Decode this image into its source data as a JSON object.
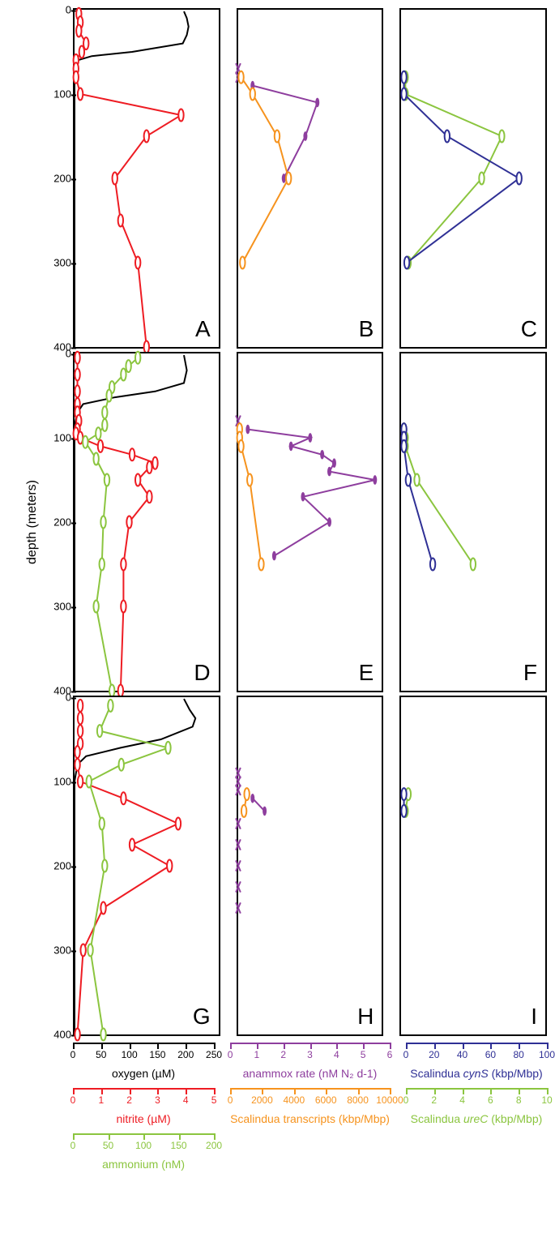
{
  "ylabel": "depth (meters)",
  "ylim": [
    0,
    400
  ],
  "yticks": [
    0,
    100,
    200,
    300,
    400
  ],
  "ytick_300_neg_panel": "C",
  "colors": {
    "black": "#000000",
    "red": "#ee1c23",
    "green": "#8bc53f",
    "orange": "#f6931e",
    "purple": "#8e3e9e",
    "blue": "#2f3095"
  },
  "panels": {
    "A": {
      "label": "A",
      "col": 1,
      "row": 1
    },
    "B": {
      "label": "B",
      "col": 2,
      "row": 1
    },
    "C": {
      "label": "C",
      "col": 3,
      "row": 1
    },
    "D": {
      "label": "D",
      "col": 1,
      "row": 2
    },
    "E": {
      "label": "E",
      "col": 2,
      "row": 2
    },
    "F": {
      "label": "F",
      "col": 3,
      "row": 2
    },
    "G": {
      "label": "G",
      "col": 1,
      "row": 3
    },
    "H": {
      "label": "H",
      "col": 2,
      "row": 3
    },
    "I": {
      "label": "I",
      "col": 3,
      "row": 3
    }
  },
  "line_width": 2,
  "marker_r": 5,
  "marker_x_size": 5,
  "series": {
    "A": [
      {
        "color": "black",
        "marker": "none",
        "xmax": 250,
        "pts": [
          [
            190,
            2
          ],
          [
            195,
            10
          ],
          [
            198,
            20
          ],
          [
            195,
            30
          ],
          [
            188,
            40
          ],
          [
            100,
            50
          ],
          [
            30,
            55
          ],
          [
            5,
            60
          ],
          [
            0,
            70
          ],
          [
            0,
            80
          ],
          [
            0,
            100
          ],
          [
            0,
            150
          ],
          [
            0,
            200
          ],
          [
            0,
            300
          ],
          [
            0,
            400
          ]
        ]
      },
      {
        "color": "red",
        "marker": "o",
        "open": true,
        "xmax": 5,
        "pts": [
          [
            0.15,
            5
          ],
          [
            0.2,
            15
          ],
          [
            0.15,
            25
          ],
          [
            0.4,
            40
          ],
          [
            0.25,
            50
          ],
          [
            0.05,
            60
          ],
          [
            0.05,
            70
          ],
          [
            0.05,
            80
          ],
          [
            0.2,
            100
          ],
          [
            3.7,
            125
          ],
          [
            2.5,
            150
          ],
          [
            1.4,
            200
          ],
          [
            1.6,
            250
          ],
          [
            2.2,
            300
          ],
          [
            2.5,
            400
          ]
        ]
      }
    ],
    "B": [
      {
        "color": "purple",
        "marker": "x",
        "xmax": 6,
        "no_line": true,
        "pts": [
          [
            0,
            70
          ],
          [
            0,
            80
          ]
        ]
      },
      {
        "color": "purple",
        "marker": "dot",
        "xmax": 6,
        "pts": [
          [
            0.6,
            90
          ],
          [
            3.3,
            110
          ],
          [
            2.8,
            150
          ],
          [
            1.9,
            200
          ]
        ]
      },
      {
        "color": "orange",
        "marker": "o",
        "open": true,
        "xmax": 10000,
        "pts": [
          [
            200,
            80
          ],
          [
            1000,
            100
          ],
          [
            2700,
            150
          ],
          [
            3500,
            200
          ],
          [
            300,
            300
          ]
        ]
      }
    ],
    "C": [
      {
        "color": "green",
        "marker": "o",
        "open": true,
        "xmax": 10,
        "pts": [
          [
            0.3,
            80
          ],
          [
            0.3,
            100
          ],
          [
            7.0,
            150
          ],
          [
            5.6,
            200
          ],
          [
            0.5,
            300
          ]
        ]
      },
      {
        "color": "blue",
        "marker": "o",
        "open": true,
        "xmax": 100,
        "pts": [
          [
            2,
            80
          ],
          [
            2,
            100
          ],
          [
            32,
            150
          ],
          [
            82,
            200
          ],
          [
            4,
            300
          ]
        ]
      }
    ],
    "D": [
      {
        "color": "black",
        "marker": "none",
        "xmax": 250,
        "pts": [
          [
            190,
            2
          ],
          [
            195,
            20
          ],
          [
            190,
            35
          ],
          [
            140,
            45
          ],
          [
            70,
            52
          ],
          [
            15,
            60
          ],
          [
            5,
            70
          ],
          [
            0,
            85
          ],
          [
            0,
            100
          ],
          [
            0,
            150
          ],
          [
            0,
            400
          ]
        ]
      },
      {
        "color": "red",
        "marker": "o",
        "open": true,
        "xmax": 5,
        "pts": [
          [
            0.1,
            5
          ],
          [
            0.1,
            25
          ],
          [
            0.1,
            45
          ],
          [
            0.1,
            60
          ],
          [
            0.1,
            70
          ],
          [
            0.15,
            80
          ],
          [
            0.1,
            90
          ],
          [
            0.05,
            95
          ],
          [
            0.2,
            100
          ],
          [
            0.9,
            110
          ],
          [
            2.0,
            120
          ],
          [
            2.8,
            130
          ],
          [
            2.6,
            135
          ],
          [
            2.2,
            150
          ],
          [
            2.6,
            170
          ],
          [
            1.9,
            200
          ],
          [
            1.7,
            250
          ],
          [
            1.7,
            300
          ],
          [
            1.6,
            400
          ]
        ]
      },
      {
        "color": "green",
        "marker": "o",
        "open": true,
        "xmax": 200,
        "pts": [
          [
            88,
            5
          ],
          [
            75,
            15
          ],
          [
            68,
            25
          ],
          [
            52,
            40
          ],
          [
            48,
            50
          ],
          [
            42,
            70
          ],
          [
            42,
            85
          ],
          [
            33,
            95
          ],
          [
            15,
            105
          ],
          [
            30,
            125
          ],
          [
            45,
            150
          ],
          [
            40,
            200
          ],
          [
            38,
            250
          ],
          [
            30,
            300
          ],
          [
            52,
            400
          ]
        ]
      }
    ],
    "E": [
      {
        "color": "purple",
        "marker": "x",
        "xmax": 6,
        "no_line": true,
        "pts": [
          [
            0,
            80
          ]
        ]
      },
      {
        "color": "purple",
        "marker": "dot",
        "xmax": 6,
        "pts": [
          [
            0.4,
            90
          ],
          [
            3.0,
            100
          ],
          [
            2.2,
            110
          ],
          [
            3.5,
            120
          ],
          [
            4.0,
            130
          ],
          [
            3.8,
            140
          ],
          [
            5.7,
            150
          ],
          [
            2.7,
            170
          ],
          [
            3.8,
            200
          ],
          [
            1.5,
            240
          ]
        ]
      },
      {
        "color": "orange",
        "marker": "o",
        "open": true,
        "xmax": 10000,
        "pts": [
          [
            100,
            90
          ],
          [
            100,
            100
          ],
          [
            200,
            110
          ],
          [
            800,
            150
          ],
          [
            1600,
            250
          ]
        ]
      }
    ],
    "F": [
      {
        "color": "green",
        "marker": "o",
        "open": true,
        "xmax": 10,
        "pts": [
          [
            0.2,
            90
          ],
          [
            0.3,
            100
          ],
          [
            0.3,
            110
          ],
          [
            1.1,
            150
          ],
          [
            5.0,
            250
          ]
        ]
      },
      {
        "color": "blue",
        "marker": "o",
        "open": true,
        "xmax": 100,
        "pts": [
          [
            2,
            90
          ],
          [
            2,
            100
          ],
          [
            2,
            110
          ],
          [
            5,
            150
          ],
          [
            22,
            250
          ]
        ]
      }
    ],
    "G": [
      {
        "color": "black",
        "marker": "none",
        "xmax": 250,
        "pts": [
          [
            190,
            2
          ],
          [
            200,
            15
          ],
          [
            210,
            25
          ],
          [
            205,
            35
          ],
          [
            150,
            50
          ],
          [
            80,
            60
          ],
          [
            20,
            70
          ],
          [
            5,
            80
          ],
          [
            0,
            100
          ],
          [
            0,
            200
          ],
          [
            0,
            400
          ]
        ]
      },
      {
        "color": "red",
        "marker": "o",
        "open": true,
        "xmax": 5,
        "pts": [
          [
            0.2,
            10
          ],
          [
            0.2,
            25
          ],
          [
            0.2,
            40
          ],
          [
            0.2,
            55
          ],
          [
            0.1,
            65
          ],
          [
            0.1,
            80
          ],
          [
            0.2,
            100
          ],
          [
            1.7,
            120
          ],
          [
            3.6,
            150
          ],
          [
            2.0,
            175
          ],
          [
            3.3,
            200
          ],
          [
            1.0,
            250
          ],
          [
            0.3,
            300
          ],
          [
            0.1,
            400
          ]
        ]
      },
      {
        "color": "green",
        "marker": "o",
        "open": true,
        "xmax": 200,
        "pts": [
          [
            50,
            10
          ],
          [
            35,
            40
          ],
          [
            130,
            60
          ],
          [
            65,
            80
          ],
          [
            20,
            100
          ],
          [
            38,
            150
          ],
          [
            42,
            200
          ],
          [
            22,
            300
          ],
          [
            40,
            400
          ]
        ]
      }
    ],
    "H": [
      {
        "color": "purple",
        "marker": "x",
        "xmax": 6,
        "no_line": true,
        "pts": [
          [
            0,
            90
          ],
          [
            0,
            100
          ],
          [
            0,
            110
          ],
          [
            0,
            150
          ],
          [
            0,
            175
          ],
          [
            0,
            200
          ],
          [
            0,
            225
          ],
          [
            0,
            250
          ]
        ]
      },
      {
        "color": "purple",
        "marker": "dot",
        "xmax": 6,
        "pts": [
          [
            0.6,
            120
          ],
          [
            1.1,
            135
          ]
        ]
      },
      {
        "color": "orange",
        "marker": "o",
        "open": true,
        "xmax": 10000,
        "pts": [
          [
            600,
            115
          ],
          [
            400,
            135
          ]
        ]
      }
    ],
    "I": [
      {
        "color": "green",
        "marker": "o",
        "open": true,
        "xmax": 10,
        "pts": [
          [
            0.5,
            115
          ],
          [
            0.3,
            135
          ]
        ]
      },
      {
        "color": "blue",
        "marker": "o",
        "open": true,
        "xmax": 100,
        "pts": [
          [
            2,
            115
          ],
          [
            2,
            135
          ]
        ]
      }
    ]
  },
  "axes": [
    {
      "col": 1,
      "color": "black",
      "title": "oxygen (µM)",
      "ticks": [
        0,
        50,
        100,
        150,
        200,
        250
      ],
      "max": 250
    },
    {
      "col": 1,
      "color": "red",
      "title": "nitrite (µM)",
      "ticks": [
        0,
        1,
        2,
        3,
        4,
        5
      ],
      "max": 5
    },
    {
      "col": 1,
      "color": "green",
      "title": "ammonium (nM)",
      "ticks": [
        0,
        50,
        100,
        150,
        200
      ],
      "max": 200
    },
    {
      "col": 2,
      "color": "purple",
      "title": "anammox rate (nM N₂ d-1)",
      "ticks": [
        0,
        1,
        2,
        3,
        4,
        5,
        6
      ],
      "max": 6
    },
    {
      "col": 2,
      "color": "orange",
      "title": "Scalindua transcripts (kbp/Mbp)",
      "ticks": [
        0,
        2000,
        4000,
        6000,
        8000,
        10000
      ],
      "max": 10000
    },
    {
      "col": 3,
      "color": "blue",
      "title": "Scalindua <i>cynS</i> (kbp/Mbp)",
      "ticks": [
        0,
        20,
        40,
        60,
        80,
        100
      ],
      "max": 100
    },
    {
      "col": 3,
      "color": "green",
      "title": "Scalindua <i>ureC</i> (kbp/Mbp)",
      "ticks": [
        0,
        2,
        4,
        6,
        8,
        10
      ],
      "max": 10
    }
  ]
}
